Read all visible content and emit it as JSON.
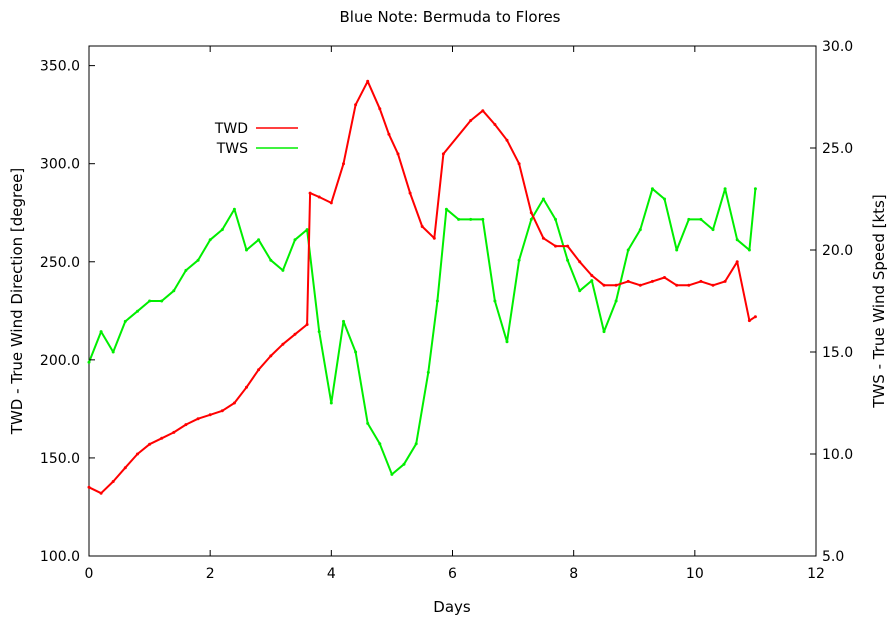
{
  "chart_data": {
    "type": "line",
    "title": "Blue Note: Bermuda to Flores",
    "xlabel": "Days",
    "ylabel": "TWD - True Wind Direction [degree]",
    "y2label": "TWS - True Wind Speed [kts]",
    "xlim": [
      0,
      12
    ],
    "ylim": [
      100,
      360
    ],
    "y2lim": [
      5,
      30
    ],
    "xticks": [
      "0",
      "2",
      "4",
      "6",
      "8",
      "10",
      "12"
    ],
    "yticks": [
      "100.0",
      "150.0",
      "200.0",
      "250.0",
      "300.0",
      "350.0"
    ],
    "y2ticks": [
      "5.0",
      "10.0",
      "15.0",
      "20.0",
      "25.0",
      "30.0"
    ],
    "legend_position": "top-left",
    "series": [
      {
        "name": "TWD",
        "color": "#ff0000",
        "axis": "left",
        "x": [
          0,
          0.2,
          0.4,
          0.6,
          0.8,
          1.0,
          1.2,
          1.4,
          1.6,
          1.8,
          2.0,
          2.2,
          2.4,
          2.6,
          2.8,
          3.0,
          3.2,
          3.4,
          3.6,
          3.65,
          3.8,
          4.0,
          4.2,
          4.4,
          4.6,
          4.8,
          4.95,
          5.1,
          5.3,
          5.5,
          5.7,
          5.85,
          6.3,
          6.5,
          6.7,
          6.9,
          7.1,
          7.3,
          7.5,
          7.7,
          7.9,
          8.1,
          8.3,
          8.5,
          8.7,
          8.9,
          9.1,
          9.3,
          9.5,
          9.7,
          9.9,
          10.1,
          10.3,
          10.5,
          10.7,
          10.9,
          11.0
        ],
        "values": [
          135,
          132,
          138,
          145,
          152,
          157,
          160,
          163,
          167,
          170,
          172,
          174,
          178,
          186,
          195,
          202,
          208,
          213,
          218,
          285,
          283,
          280,
          300,
          330,
          342,
          328,
          315,
          305,
          285,
          268,
          262,
          305,
          322,
          327,
          320,
          312,
          300,
          275,
          262,
          258,
          258,
          250,
          243,
          238,
          238,
          240,
          238,
          240,
          242,
          238,
          238,
          240,
          238,
          240,
          250,
          220,
          222
        ]
      },
      {
        "name": "TWS",
        "color": "#00ee00",
        "axis": "right",
        "x": [
          0,
          0.2,
          0.4,
          0.6,
          0.8,
          1.0,
          1.2,
          1.4,
          1.6,
          1.8,
          2.0,
          2.2,
          2.4,
          2.6,
          2.8,
          3.0,
          3.2,
          3.4,
          3.6,
          3.8,
          4.0,
          4.2,
          4.4,
          4.6,
          4.8,
          5.0,
          5.2,
          5.4,
          5.6,
          5.75,
          5.9,
          6.1,
          6.3,
          6.5,
          6.7,
          6.9,
          7.1,
          7.3,
          7.5,
          7.7,
          7.9,
          8.1,
          8.3,
          8.5,
          8.7,
          8.9,
          9.1,
          9.3,
          9.5,
          9.7,
          9.9,
          10.1,
          10.3,
          10.5,
          10.7,
          10.9,
          11.0
        ],
        "values": [
          14.5,
          16.0,
          15.0,
          16.5,
          17.0,
          17.5,
          17.5,
          18.0,
          19.0,
          19.5,
          20.5,
          21.0,
          22.0,
          20.0,
          20.5,
          19.5,
          19.0,
          20.5,
          21.0,
          16.0,
          12.5,
          16.5,
          15.0,
          11.5,
          10.5,
          9.0,
          9.5,
          10.5,
          14.0,
          17.5,
          22.0,
          21.5,
          21.5,
          21.5,
          17.5,
          15.5,
          19.5,
          21.5,
          22.5,
          21.5,
          19.5,
          18.0,
          18.5,
          16.0,
          17.5,
          20.0,
          21.0,
          23.0,
          22.5,
          20.0,
          21.5,
          21.5,
          21.0,
          23.0,
          20.5,
          20.0,
          23.0
        ]
      }
    ]
  }
}
